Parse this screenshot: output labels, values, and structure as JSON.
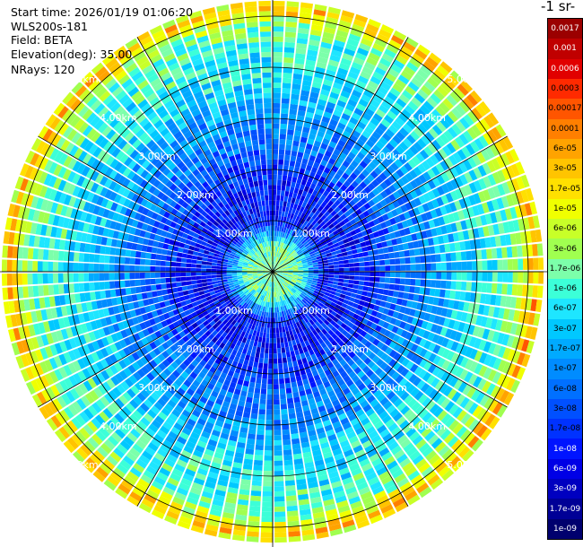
{
  "header": {
    "start_time": "Start time: 2026/01/19 01:06:20",
    "instrument": "WLS200s-181",
    "field": "Field: BETA",
    "elevation": "Elevation(deg): 35.00",
    "nrays": "NRays: 120"
  },
  "colorbar": {
    "title": "-1 sr-",
    "labels": [
      "0.0017",
      "0.001",
      "0.0006",
      "0.0003",
      "0.00017",
      "0.0001",
      "6e-05",
      "3e-05",
      "1.7e-05",
      "1e-05",
      "6e-06",
      "3e-06",
      "1.7e-06",
      "1e-06",
      "6e-07",
      "3e-07",
      "1.7e-07",
      "1e-07",
      "6e-08",
      "3e-08",
      "1.7e-08",
      "1e-08",
      "6e-09",
      "3e-09",
      "1.7e-09",
      "1e-09"
    ],
    "colors": [
      "#9b0000",
      "#c00000",
      "#e10000",
      "#ff2a00",
      "#ff5500",
      "#ff7f00",
      "#ffa300",
      "#ffc400",
      "#ffe000",
      "#f0ff00",
      "#c8ff28",
      "#a0ff50",
      "#7cffaa",
      "#3cffd8",
      "#1ee6ff",
      "#00c8ff",
      "#00aaff",
      "#008cff",
      "#0070ff",
      "#0050ff",
      "#0032ff",
      "#0014ff",
      "#0000e6",
      "#0000c0",
      "#000096",
      "#00006e"
    ]
  },
  "chart_data": {
    "type": "heatmap",
    "projection": "polar (PPI scan)",
    "field": "BETA",
    "elevation_deg": 35.0,
    "n_rays": 120,
    "range_rings_km": [
      1.0,
      2.0,
      3.0,
      4.0,
      5.0
    ],
    "range_ring_labels": [
      "1.00km",
      "2.00km",
      "3.00km",
      "4.00km",
      "5.00km"
    ],
    "max_range_km": 5.3,
    "scale": "log",
    "value_range": [
      1e-09,
      0.0017
    ],
    "radial_profile": [
      {
        "range_km": 0.0,
        "value": 1.7e-06
      },
      {
        "range_km": 0.5,
        "value": 1.7e-06
      },
      {
        "range_km": 1.0,
        "value": 1e-08
      },
      {
        "range_km": 1.5,
        "value": 1e-08
      },
      {
        "range_km": 2.0,
        "value": 1.7e-08
      },
      {
        "range_km": 2.5,
        "value": 6e-08
      },
      {
        "range_km": 3.0,
        "value": 1e-07
      },
      {
        "range_km": 3.5,
        "value": 3e-07
      },
      {
        "range_km": 4.0,
        "value": 6e-07
      },
      {
        "range_km": 4.5,
        "value": 1e-06
      },
      {
        "range_km": 4.8,
        "value": 1.7e-06
      },
      {
        "range_km": 5.0,
        "value": 1e-05
      },
      {
        "range_km": 5.2,
        "value": 6e-05
      },
      {
        "range_km": 5.3,
        "value": 1.7e-06
      }
    ],
    "grid": true
  }
}
